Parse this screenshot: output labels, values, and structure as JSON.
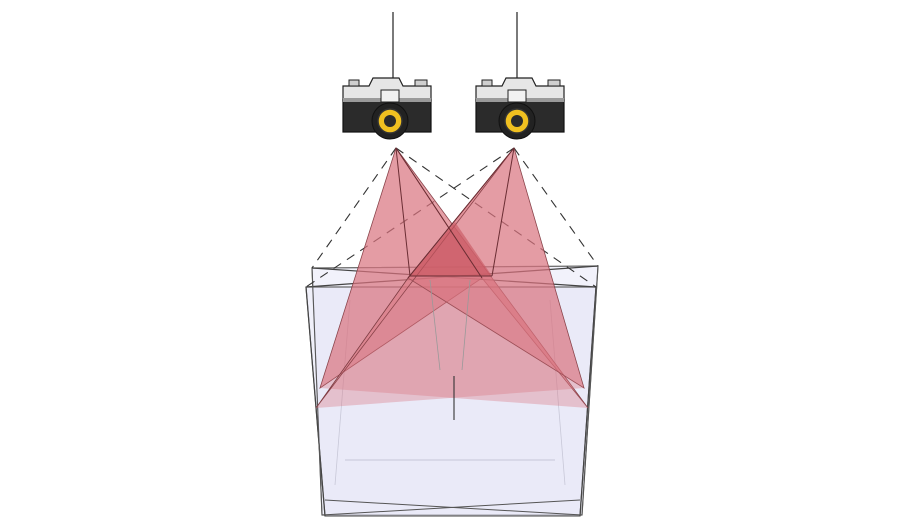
{
  "scene": {
    "description_type": "3d-stereo-camera-illustration",
    "cameras": [
      {
        "id": "left",
        "icon": "camera-icon"
      },
      {
        "id": "right",
        "icon": "camera-icon"
      }
    ],
    "colors": {
      "background": "#ffffff",
      "frustum_fill": "#d9737d",
      "frustum_overlap": "#c8555f",
      "box_fill": "#e4e4f7",
      "box_stroke": "#555555",
      "camera_body": "#2b2b2b",
      "camera_top": "#e6e6e6",
      "lens_ring": "#f0c020"
    }
  }
}
